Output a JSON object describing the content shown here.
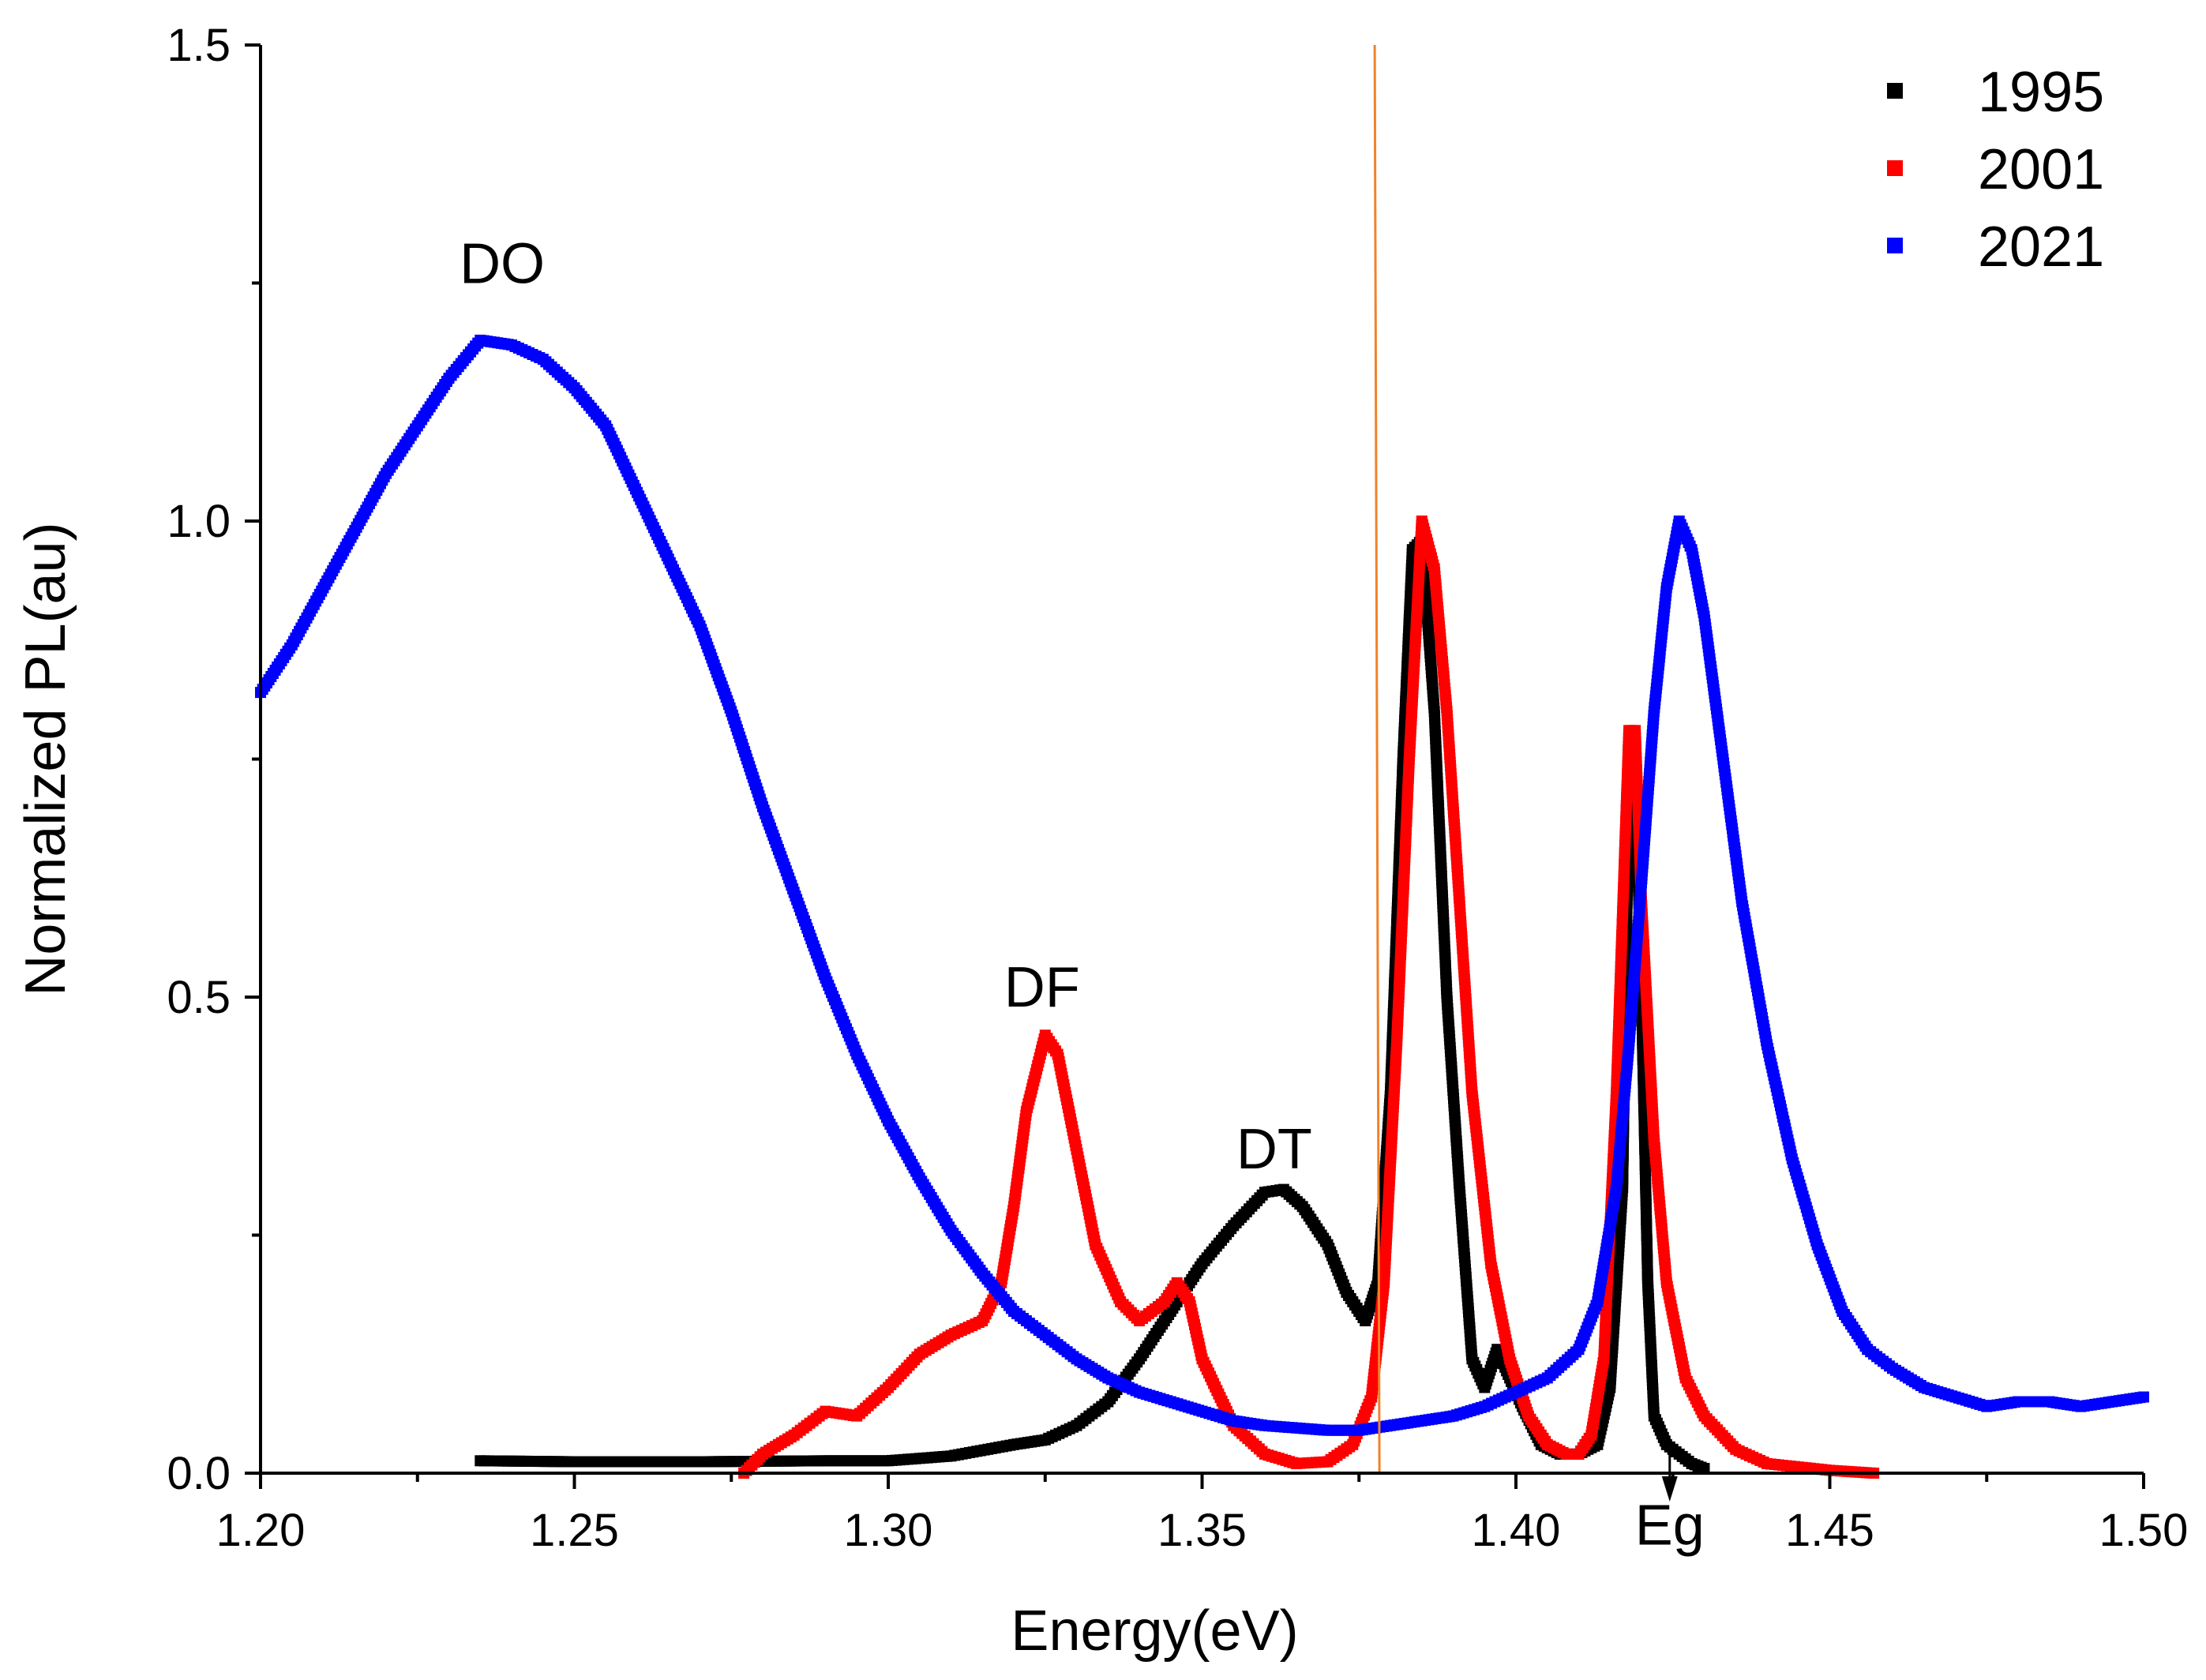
{
  "chart_data": {
    "type": "scatter",
    "xlabel": "Energy(eV)",
    "ylabel": "Normalized PL(au)",
    "xlim": [
      1.2,
      1.5
    ],
    "ylim": [
      0.0,
      1.5
    ],
    "x_ticks": [
      "1.20",
      "1.25",
      "1.30",
      "1.35",
      "1.40",
      "1.45",
      "1.50"
    ],
    "y_ticks": [
      "0.0",
      "0.5",
      "1.0",
      "1.5"
    ],
    "legend_position": "top-right",
    "vertical_line": {
      "x": 1.3775,
      "color": "#f0822a"
    },
    "series": [
      {
        "name": "1995",
        "color": "#000000",
        "points": [
          [
            1.235,
            0.013
          ],
          [
            1.25,
            0.012
          ],
          [
            1.27,
            0.012
          ],
          [
            1.29,
            0.013
          ],
          [
            1.3,
            0.013
          ],
          [
            1.31,
            0.018
          ],
          [
            1.32,
            0.03
          ],
          [
            1.325,
            0.035
          ],
          [
            1.33,
            0.05
          ],
          [
            1.335,
            0.075
          ],
          [
            1.34,
            0.12
          ],
          [
            1.345,
            0.17
          ],
          [
            1.35,
            0.22
          ],
          [
            1.355,
            0.26
          ],
          [
            1.36,
            0.295
          ],
          [
            1.363,
            0.298
          ],
          [
            1.366,
            0.28
          ],
          [
            1.37,
            0.24
          ],
          [
            1.373,
            0.19
          ],
          [
            1.376,
            0.16
          ],
          [
            1.378,
            0.2
          ],
          [
            1.38,
            0.4
          ],
          [
            1.382,
            0.75
          ],
          [
            1.3835,
            0.97
          ],
          [
            1.385,
            0.98
          ],
          [
            1.387,
            0.8
          ],
          [
            1.389,
            0.5
          ],
          [
            1.391,
            0.3
          ],
          [
            1.393,
            0.12
          ],
          [
            1.395,
            0.09
          ],
          [
            1.397,
            0.13
          ],
          [
            1.399,
            0.1
          ],
          [
            1.401,
            0.07
          ],
          [
            1.404,
            0.03
          ],
          [
            1.407,
            0.02
          ],
          [
            1.41,
            0.02
          ],
          [
            1.413,
            0.03
          ],
          [
            1.415,
            0.09
          ],
          [
            1.417,
            0.3
          ],
          [
            1.418,
            0.73
          ],
          [
            1.419,
            0.74
          ],
          [
            1.42,
            0.5
          ],
          [
            1.421,
            0.2
          ],
          [
            1.422,
            0.06
          ],
          [
            1.424,
            0.03
          ],
          [
            1.428,
            0.01
          ],
          [
            1.43,
            0.005
          ]
        ]
      },
      {
        "name": "2001",
        "color": "#ff0000",
        "points": [
          [
            1.277,
            0.0
          ],
          [
            1.28,
            0.02
          ],
          [
            1.285,
            0.04
          ],
          [
            1.29,
            0.065
          ],
          [
            1.295,
            0.06
          ],
          [
            1.3,
            0.09
          ],
          [
            1.305,
            0.125
          ],
          [
            1.31,
            0.145
          ],
          [
            1.315,
            0.16
          ],
          [
            1.318,
            0.2
          ],
          [
            1.32,
            0.28
          ],
          [
            1.322,
            0.38
          ],
          [
            1.325,
            0.46
          ],
          [
            1.327,
            0.44
          ],
          [
            1.33,
            0.34
          ],
          [
            1.333,
            0.24
          ],
          [
            1.337,
            0.18
          ],
          [
            1.34,
            0.16
          ],
          [
            1.344,
            0.18
          ],
          [
            1.346,
            0.2
          ],
          [
            1.348,
            0.18
          ],
          [
            1.35,
            0.12
          ],
          [
            1.355,
            0.05
          ],
          [
            1.36,
            0.02
          ],
          [
            1.365,
            0.01
          ],
          [
            1.37,
            0.012
          ],
          [
            1.374,
            0.03
          ],
          [
            1.377,
            0.08
          ],
          [
            1.379,
            0.2
          ],
          [
            1.381,
            0.45
          ],
          [
            1.383,
            0.75
          ],
          [
            1.385,
            1.0
          ],
          [
            1.387,
            0.95
          ],
          [
            1.389,
            0.8
          ],
          [
            1.391,
            0.6
          ],
          [
            1.393,
            0.4
          ],
          [
            1.396,
            0.22
          ],
          [
            1.399,
            0.12
          ],
          [
            1.402,
            0.06
          ],
          [
            1.405,
            0.03
          ],
          [
            1.408,
            0.02
          ],
          [
            1.41,
            0.02
          ],
          [
            1.412,
            0.04
          ],
          [
            1.414,
            0.12
          ],
          [
            1.416,
            0.4
          ],
          [
            1.418,
            0.78
          ],
          [
            1.419,
            0.78
          ],
          [
            1.42,
            0.6
          ],
          [
            1.422,
            0.35
          ],
          [
            1.424,
            0.2
          ],
          [
            1.427,
            0.1
          ],
          [
            1.43,
            0.06
          ],
          [
            1.435,
            0.025
          ],
          [
            1.44,
            0.01
          ],
          [
            1.45,
            0.003
          ],
          [
            1.457,
            0.0
          ]
        ]
      },
      {
        "name": "2021",
        "color": "#0000ff",
        "points": [
          [
            1.2,
            0.82
          ],
          [
            1.205,
            0.87
          ],
          [
            1.21,
            0.93
          ],
          [
            1.215,
            0.99
          ],
          [
            1.22,
            1.05
          ],
          [
            1.225,
            1.1
          ],
          [
            1.23,
            1.15
          ],
          [
            1.235,
            1.19
          ],
          [
            1.24,
            1.185
          ],
          [
            1.245,
            1.17
          ],
          [
            1.25,
            1.14
          ],
          [
            1.255,
            1.1
          ],
          [
            1.26,
            1.03
          ],
          [
            1.265,
            0.96
          ],
          [
            1.27,
            0.89
          ],
          [
            1.275,
            0.8
          ],
          [
            1.28,
            0.7
          ],
          [
            1.285,
            0.61
          ],
          [
            1.29,
            0.52
          ],
          [
            1.295,
            0.44
          ],
          [
            1.3,
            0.37
          ],
          [
            1.305,
            0.31
          ],
          [
            1.31,
            0.255
          ],
          [
            1.315,
            0.21
          ],
          [
            1.32,
            0.17
          ],
          [
            1.325,
            0.145
          ],
          [
            1.33,
            0.12
          ],
          [
            1.335,
            0.1
          ],
          [
            1.34,
            0.085
          ],
          [
            1.345,
            0.075
          ],
          [
            1.35,
            0.065
          ],
          [
            1.355,
            0.055
          ],
          [
            1.36,
            0.05
          ],
          [
            1.37,
            0.045
          ],
          [
            1.375,
            0.045
          ],
          [
            1.38,
            0.05
          ],
          [
            1.385,
            0.055
          ],
          [
            1.39,
            0.06
          ],
          [
            1.395,
            0.07
          ],
          [
            1.4,
            0.085
          ],
          [
            1.405,
            0.1
          ],
          [
            1.41,
            0.13
          ],
          [
            1.413,
            0.18
          ],
          [
            1.416,
            0.3
          ],
          [
            1.418,
            0.45
          ],
          [
            1.42,
            0.62
          ],
          [
            1.422,
            0.8
          ],
          [
            1.424,
            0.93
          ],
          [
            1.426,
            1.0
          ],
          [
            1.428,
            0.97
          ],
          [
            1.43,
            0.9
          ],
          [
            1.433,
            0.75
          ],
          [
            1.436,
            0.6
          ],
          [
            1.44,
            0.45
          ],
          [
            1.444,
            0.33
          ],
          [
            1.448,
            0.24
          ],
          [
            1.452,
            0.17
          ],
          [
            1.456,
            0.13
          ],
          [
            1.46,
            0.11
          ],
          [
            1.465,
            0.09
          ],
          [
            1.47,
            0.08
          ],
          [
            1.475,
            0.07
          ],
          [
            1.48,
            0.075
          ],
          [
            1.485,
            0.075
          ],
          [
            1.49,
            0.07
          ],
          [
            1.495,
            0.075
          ],
          [
            1.5,
            0.08
          ]
        ]
      }
    ],
    "annotations": [
      {
        "text": "DO",
        "x": 1.2385,
        "y": 1.25
      },
      {
        "text": "DF",
        "x": 1.3245,
        "y": 0.49
      },
      {
        "text": "DT",
        "x": 1.3615,
        "y": 0.32
      },
      {
        "text": "Eg",
        "x": 1.4245,
        "y": -0.075
      }
    ],
    "eg_arrow_x": 1.4245
  }
}
